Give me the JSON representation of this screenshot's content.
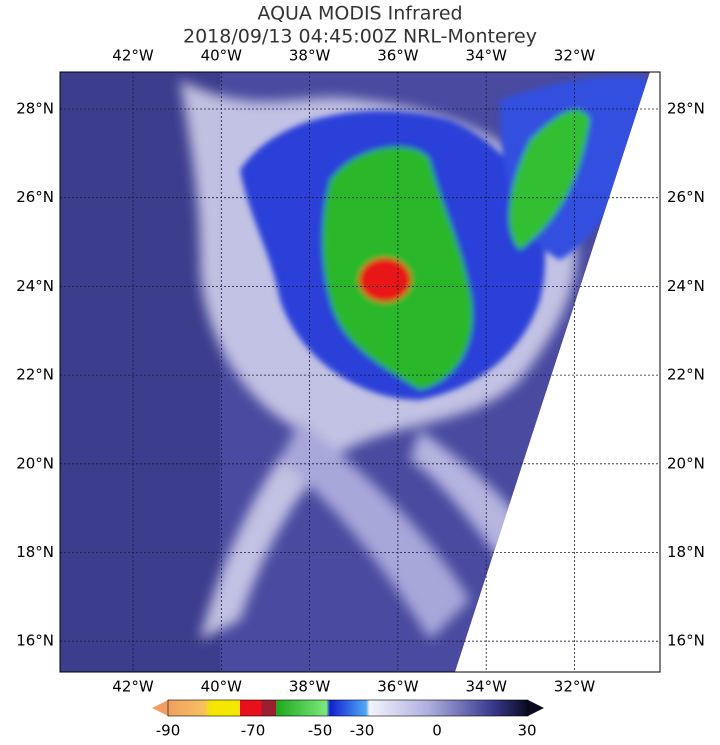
{
  "header": {
    "title": "AQUA MODIS Infrared",
    "subtitle": "2018/09/13 04:45:00Z NRL-Monterey"
  },
  "map": {
    "longitudes": [
      "42°W",
      "40°W",
      "38°W",
      "36°W",
      "34°W",
      "32°W"
    ],
    "latitudes": [
      "28°N",
      "26°N",
      "24°N",
      "22°N",
      "20°N",
      "18°N",
      "16°N"
    ]
  },
  "colorbar": {
    "labels": [
      "-90",
      "-70",
      "-50",
      "-30",
      "0",
      "30"
    ]
  }
}
